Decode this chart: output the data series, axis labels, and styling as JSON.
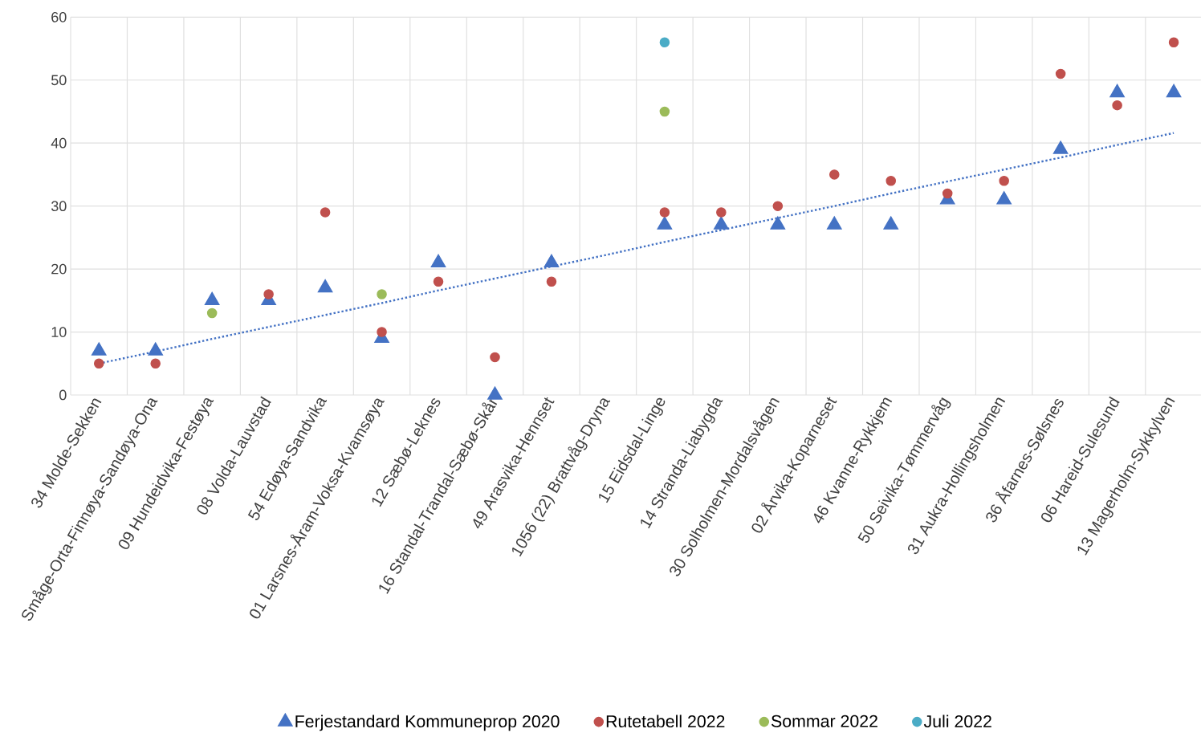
{
  "chart_data": {
    "type": "scatter",
    "categories": [
      "34 Molde-Sekken",
      "Småge-Orta-Finnøya-Sandøya-Ona",
      "09 Hundeidvika-Festøya",
      "08 Volda-Lauvstad",
      "54 Edøya-Sandvika",
      "01 Larsnes-Åram-Voksa-Kvamsøya",
      "12 Sæbø-Leknes",
      "16 Standal-Trandal-Sæbø-Skår",
      "49 Arasvika-Hennset",
      "1056 (22) Brattvåg-Dryna",
      "15 Eidsdal-Linge",
      "14 Stranda-Liabygda",
      "30 Solholmen-Mordalsvågen",
      "02 Årvika-Koparneset",
      "46 Kvanne-Rykkjem",
      "50 Seivika-Tømmervåg",
      "31 Aukra-Hollingsholmen",
      "36 Åfarnes-Sølsnes",
      "06 Hareid-Sulesund",
      "13 Magerholm-Sykkylven"
    ],
    "series": [
      {
        "name": "Ferjestandard Kommuneprop 2020",
        "color": "#4472c4",
        "marker": "triangle",
        "values": [
          7,
          7,
          15,
          15,
          17,
          9,
          21,
          0,
          21,
          null,
          27,
          27,
          27,
          27,
          27,
          31,
          31,
          39,
          48,
          48
        ]
      },
      {
        "name": "Rutetabell 2022",
        "color": "#c0504d",
        "marker": "circle",
        "values": [
          5,
          5,
          null,
          16,
          29,
          10,
          18,
          6,
          18,
          null,
          29,
          29,
          30,
          35,
          34,
          32,
          34,
          51,
          46,
          56
        ]
      },
      {
        "name": "Sommar 2022",
        "color": "#9bbb59",
        "marker": "circle",
        "values": [
          null,
          null,
          13,
          null,
          null,
          16,
          null,
          null,
          null,
          null,
          45,
          null,
          null,
          null,
          null,
          null,
          null,
          null,
          null,
          null
        ]
      },
      {
        "name": "Juli 2022",
        "color": "#4bacc6",
        "marker": "circle",
        "values": [
          null,
          null,
          null,
          null,
          null,
          null,
          null,
          null,
          null,
          null,
          56,
          null,
          null,
          null,
          null,
          null,
          null,
          null,
          null,
          null
        ]
      },
      {
        "type": "line",
        "color": "#4472c4",
        "line_style": "dotted",
        "marker": "none",
        "values": [
          5.0,
          6.9,
          8.9,
          10.8,
          12.7,
          14.6,
          16.6,
          18.5,
          20.4,
          22.3,
          24.3,
          26.2,
          28.1,
          30.0,
          32.0,
          33.9,
          35.8,
          37.7,
          39.7,
          41.6
        ]
      }
    ],
    "ylim": [
      0,
      60
    ],
    "yticks": [
      0,
      10,
      20,
      30,
      40,
      50,
      60
    ],
    "grid": true,
    "legend": "bottom"
  }
}
